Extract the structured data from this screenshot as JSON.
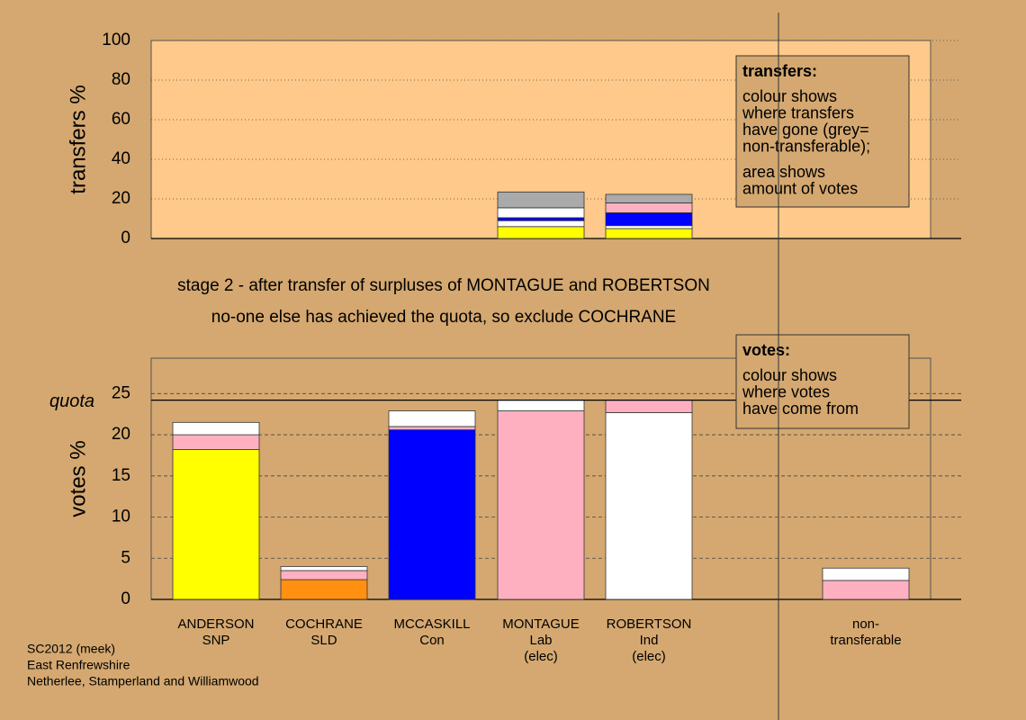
{
  "chart_data": [
    {
      "type": "bar",
      "stacked": true,
      "ylabel": "transfers %",
      "ylim": [
        0,
        100
      ],
      "yticks": [
        0,
        20,
        40,
        60,
        80,
        100
      ],
      "grid": true,
      "series": [
        {
          "colors": [
            null,
            null,
            null,
            "#ffff00",
            "#ffff00",
            null
          ],
          "values": [
            null,
            null,
            null,
            6,
            5,
            null
          ]
        },
        {
          "colors": [
            null,
            null,
            null,
            "#ffffff",
            "#ffffff",
            null
          ],
          "values": [
            null,
            null,
            null,
            3,
            1.5,
            null
          ]
        },
        {
          "colors": [
            null,
            null,
            null,
            "#0000ff",
            "#0000ff",
            null
          ],
          "values": [
            null,
            null,
            null,
            1.5,
            6.5,
            null
          ]
        },
        {
          "colors": [
            null,
            null,
            null,
            "#ffffff",
            "#ffb0c0",
            null
          ],
          "values": [
            null,
            null,
            null,
            5,
            5,
            null
          ]
        },
        {
          "colors": [
            null,
            null,
            null,
            "#aaaaaa",
            "#aaaaaa",
            null
          ],
          "values": [
            null,
            null,
            null,
            8,
            4.3,
            null
          ]
        }
      ],
      "legend": {
        "title": "transfers:",
        "lines": [
          "colour shows",
          "where transfers",
          "have gone (grey=",
          "non-transferable);"
        ],
        "lines2": [
          "area shows",
          "amount of votes"
        ]
      }
    },
    {
      "type": "bar",
      "stacked": true,
      "ylabel": "votes %",
      "ylim": [
        0,
        29.3
      ],
      "yticks": [
        0,
        5,
        10,
        15,
        20,
        25
      ],
      "grid": true,
      "quota": 24.2,
      "quota_label": "quota",
      "categories": [
        [
          "ANDERSON",
          "SNP"
        ],
        [
          "COCHRANE",
          "SLD"
        ],
        [
          "MCCASKILL",
          "Con"
        ],
        [
          "MONTAGUE",
          "Lab",
          "(elec)"
        ],
        [
          "ROBERTSON",
          "Ind",
          "(elec)"
        ],
        [
          "non-",
          "transferable"
        ]
      ],
      "series": [
        {
          "colors": [
            "#ffff00",
            "#ff9010",
            "#0000ff",
            "#ffb0c0",
            "#ffffff",
            "#ffb0c0"
          ],
          "values": [
            18.2,
            2.4,
            20.6,
            22.9,
            22.7,
            2.3
          ]
        },
        {
          "colors": [
            "#ffb0c0",
            "#ffb0c0",
            "#ffb0c0",
            "#ffffff",
            "#ffb0c0",
            "#ffffff"
          ],
          "values": [
            1.8,
            1.1,
            0.4,
            1.3,
            1.5,
            1.5
          ]
        },
        {
          "colors": [
            "#ffffff",
            "#ffffff",
            "#ffffff",
            null,
            null,
            null
          ],
          "values": [
            1.5,
            0.5,
            1.9,
            null,
            null,
            null
          ]
        }
      ],
      "legend": {
        "title": "votes:",
        "lines": [
          "colour shows",
          "where votes",
          "have come from"
        ]
      }
    }
  ],
  "stage_lines": [
    "stage 2 - after transfer of surpluses of MONTAGUE and ROBERTSON",
    "no-one else has achieved the quota, so exclude COCHRANE"
  ],
  "footer": [
    "SC2012 (meek)",
    "East Renfrewshire",
    "Netherlee, Stamperland and Williamwood"
  ]
}
